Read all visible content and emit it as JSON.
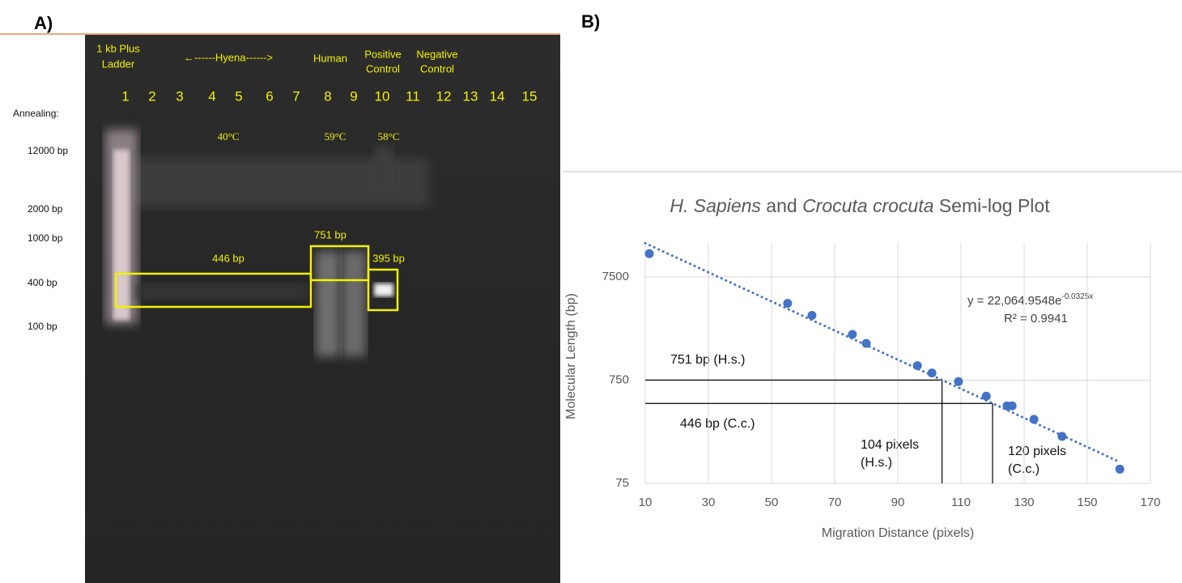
{
  "panel_a": {
    "label": "A)",
    "lane_headers": {
      "ladder": [
        "1 kb Plus",
        "Ladder"
      ],
      "hyena": "←------Hyena------>",
      "human": "Human",
      "positive": [
        "Positive",
        "Control"
      ],
      "negative": [
        "Negative",
        "Control"
      ]
    },
    "lanes": [
      1,
      2,
      3,
      4,
      5,
      6,
      7,
      8,
      9,
      10,
      11,
      12,
      13,
      14,
      15
    ],
    "annealing_label": "Annealing:",
    "temperatures": [
      "40°C",
      "59°C",
      "58°C"
    ],
    "size_markers": [
      "12000 bp",
      "2000 bp",
      "1000 bp",
      "400 bp",
      "100 bp"
    ],
    "band_labels": [
      "446 bp",
      "751 bp",
      "395 bp"
    ]
  },
  "panel_b": {
    "label": "B)"
  },
  "chart_data": {
    "type": "scatter",
    "title_parts": [
      {
        "text": "H. Sapiens",
        "italic": true
      },
      {
        "text": " and ",
        "italic": false
      },
      {
        "text": "Crocuta crocuta",
        "italic": true
      },
      {
        "text": " Semi-log Plot",
        "italic": false
      }
    ],
    "x_label": "Migration Distance (pixels)",
    "y_label": "Molecular Length (bp)",
    "x": [
      11.3,
      55.1,
      62.8,
      75.6,
      80,
      96.2,
      100.8,
      109.2,
      118,
      124.6,
      126.2,
      133.1,
      142,
      160.3
    ],
    "values": [
      12600,
      4160,
      3180,
      2080,
      1700,
      1035,
      880,
      727,
      525,
      423,
      423,
      313,
      214,
      103
    ],
    "color": "#4472c4",
    "xlim": [
      10,
      170
    ],
    "xticks": [
      10,
      30,
      50,
      70,
      90,
      110,
      130,
      150,
      170
    ],
    "ylim": [
      75,
      16000
    ],
    "yticks": [
      75,
      750,
      7500
    ],
    "log_y": true,
    "grid": true,
    "trendline": {
      "x": [
        10,
        160
      ],
      "values": [
        15900,
        122
      ]
    },
    "equation": {
      "text": "y = 22,064.9548e",
      "exponent": "-0.0325x",
      "r_squared": "R² = 0.9941"
    },
    "reference_lines": [
      {
        "x": 104,
        "y": 751,
        "y_label": "751 bp (H.s.)",
        "x_label": [
          "104 pixels",
          "(H.s.)"
        ]
      },
      {
        "x": 120,
        "y": 446,
        "y_label": "446 bp (C.c.)",
        "x_label": [
          "120 pixels",
          "(C.c.)"
        ]
      }
    ]
  }
}
